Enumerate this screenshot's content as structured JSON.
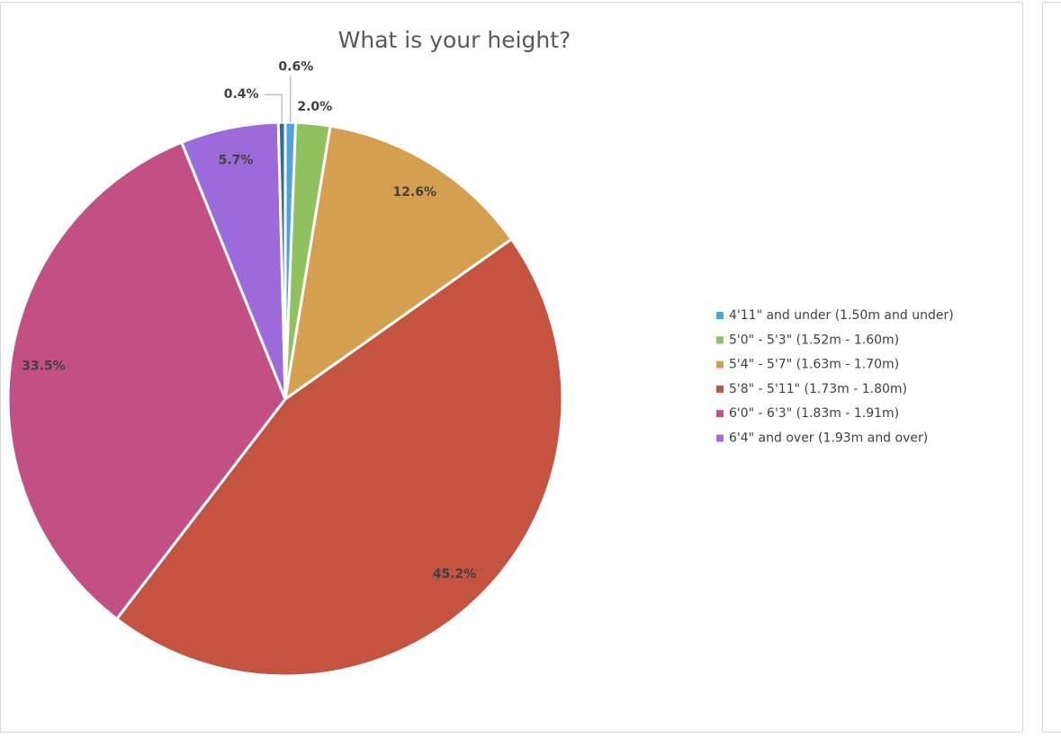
{
  "chart_data": {
    "type": "pie",
    "title": "What is your height?",
    "categories": [
      "4'11\" and under (1.50m and under)",
      "5'0\" - 5'3\" (1.52m - 1.60m)",
      "5'4\" - 5'7\" (1.63m - 1.70m)",
      "5'8\" - 5'11\" (1.73m - 1.80m)",
      "6'0\" - 6'3\" (1.83m - 1.91m)",
      "6'4\" and over (1.93m and over)",
      null
    ],
    "values": [
      0.6,
      2.0,
      12.6,
      45.2,
      33.5,
      5.7,
      0.4
    ],
    "value_labels": [
      "0.6%",
      "2.0%",
      "12.6%",
      "45.2%",
      "33.5%",
      "5.7%",
      "0.4%"
    ],
    "colors": [
      "#4ba3df",
      "#8fc15f",
      "#d49f4e",
      "#c45340",
      "#c35084",
      "#9c6adb",
      "#2f6ca5"
    ],
    "legend": "right"
  }
}
